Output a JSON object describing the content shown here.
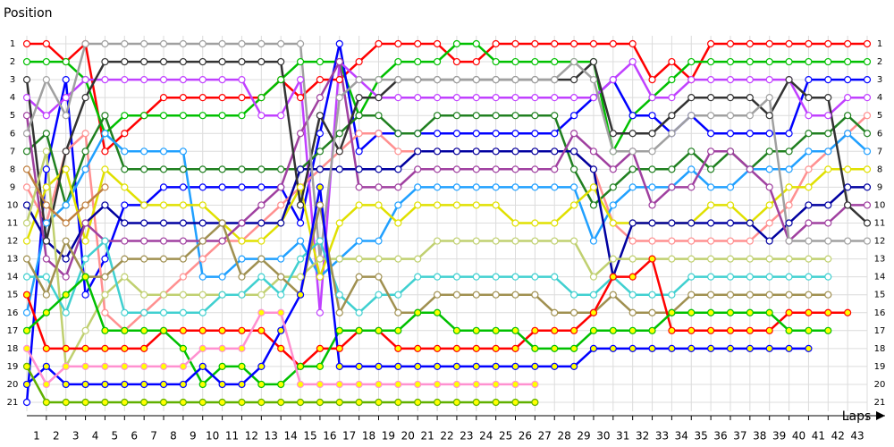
{
  "chart_data": {
    "type": "line",
    "x_label": "Laps",
    "y_label": "Position",
    "x": [
      0,
      1,
      2,
      3,
      4,
      5,
      6,
      7,
      8,
      9,
      10,
      11,
      12,
      13,
      14,
      15,
      16,
      17,
      18,
      19,
      20,
      21,
      22,
      23,
      24,
      25,
      26,
      27,
      28,
      29,
      30,
      31,
      32,
      33,
      34,
      35,
      36,
      37,
      38,
      39,
      40,
      41,
      42,
      43
    ],
    "xlim": [
      0,
      43
    ],
    "xticks": [
      1,
      2,
      3,
      4,
      5,
      6,
      7,
      8,
      9,
      10,
      11,
      12,
      13,
      14,
      15,
      16,
      17,
      18,
      19,
      20,
      21,
      22,
      23,
      24,
      25,
      26,
      27,
      28,
      29,
      30,
      31,
      32,
      33,
      34,
      35,
      36,
      37,
      38,
      39,
      40,
      41,
      42,
      43
    ],
    "ylim": [
      21,
      1
    ],
    "yticks": [
      1,
      2,
      3,
      4,
      5,
      6,
      7,
      8,
      9,
      10,
      11,
      12,
      13,
      14,
      15,
      16,
      17,
      18,
      19,
      20,
      21
    ],
    "grid": true,
    "series": [
      {
        "color": "#ff0000",
        "marker_fill": "#ffffff",
        "values": [
          1,
          1,
          2,
          1,
          7,
          6,
          5,
          4,
          4,
          4,
          4,
          4,
          4,
          3,
          4,
          3,
          3,
          2,
          1,
          1,
          1,
          1,
          2,
          2,
          1,
          1,
          1,
          1,
          1,
          1,
          1,
          1,
          3,
          2,
          3,
          1,
          1,
          1,
          1,
          1,
          1,
          1,
          1,
          1
        ]
      },
      {
        "color": "#00c000",
        "marker_fill": "#ffffff",
        "values": [
          2,
          2,
          2,
          3,
          6,
          5,
          5,
          5,
          5,
          5,
          5,
          5,
          4,
          3,
          2,
          2,
          2,
          5,
          3,
          2,
          2,
          2,
          1,
          1,
          2,
          2,
          2,
          2,
          2,
          2,
          7,
          5,
          4,
          3,
          2,
          2,
          2,
          2,
          2,
          2,
          2,
          2,
          2,
          2
        ]
      },
      {
        "color": "#0000ff",
        "marker_fill": "#ffffff",
        "values": [
          21,
          8,
          3,
          15,
          13,
          10,
          10,
          9,
          9,
          9,
          9,
          9,
          9,
          9,
          11,
          6,
          1,
          7,
          6,
          6,
          6,
          6,
          6,
          6,
          6,
          6,
          6,
          6,
          5,
          4,
          3,
          5,
          5,
          6,
          5,
          6,
          6,
          6,
          6,
          6,
          3,
          3,
          3,
          3
        ]
      },
      {
        "color": "#c040ff",
        "marker_fill": "#ffffff",
        "values": [
          4,
          5,
          4,
          3,
          3,
          3,
          3,
          3,
          3,
          3,
          3,
          3,
          5,
          5,
          3,
          16,
          2,
          3,
          4,
          4,
          4,
          4,
          4,
          4,
          4,
          4,
          4,
          4,
          4,
          4,
          3,
          2,
          4,
          4,
          3,
          3,
          3,
          3,
          3,
          3,
          5,
          5,
          4,
          4
        ]
      },
      {
        "color": "#ff9090",
        "marker_fill": "#ffffff",
        "values": [
          9,
          11,
          7,
          6,
          16,
          17,
          16,
          15,
          14,
          13,
          12,
          12,
          11,
          10,
          9,
          8,
          7,
          6,
          6,
          7,
          7,
          7,
          7,
          7,
          7,
          7,
          7,
          7,
          7,
          8,
          11,
          12,
          12,
          12,
          12,
          12,
          12,
          12,
          11,
          10,
          8,
          7,
          6,
          5
        ]
      },
      {
        "color": "#208020",
        "marker_fill": "#ffffff",
        "values": [
          7,
          6,
          10,
          7,
          5,
          8,
          8,
          8,
          8,
          8,
          8,
          8,
          8,
          8,
          8,
          7,
          6,
          5,
          5,
          6,
          6,
          5,
          5,
          5,
          5,
          5,
          5,
          5,
          8,
          10,
          9,
          8,
          8,
          8,
          7,
          8,
          7,
          8,
          7,
          7,
          6,
          6,
          5,
          6
        ]
      },
      {
        "color": "#20a0ff",
        "marker_fill": "#ffffff",
        "values": [
          16,
          11,
          10,
          8,
          6,
          7,
          7,
          7,
          7,
          14,
          14,
          13,
          13,
          13,
          12,
          14,
          13,
          12,
          12,
          10,
          9,
          9,
          9,
          9,
          9,
          9,
          9,
          9,
          9,
          12,
          10,
          9,
          9,
          9,
          8,
          9,
          9,
          8,
          8,
          8,
          7,
          7,
          6,
          7
        ]
      },
      {
        "color": "#e0e000",
        "marker_fill": "#ffffff",
        "values": [
          12,
          9,
          8,
          12,
          8,
          9,
          10,
          10,
          10,
          10,
          11,
          12,
          12,
          11,
          9,
          14,
          11,
          10,
          10,
          11,
          10,
          10,
          10,
          10,
          10,
          11,
          11,
          11,
          10,
          9,
          11,
          11,
          11,
          11,
          11,
          10,
          10,
          11,
          10,
          9,
          9,
          8,
          8,
          8
        ]
      },
      {
        "color": "#0000a0",
        "marker_fill": "#ffffff",
        "values": [
          10,
          12,
          13,
          11,
          10,
          11,
          11,
          11,
          11,
          11,
          11,
          11,
          11,
          11,
          8,
          8,
          8,
          8,
          8,
          8,
          7,
          7,
          7,
          7,
          7,
          7,
          7,
          7,
          7,
          8,
          14,
          11,
          11,
          11,
          11,
          11,
          11,
          11,
          12,
          11,
          10,
          10,
          9,
          9
        ]
      },
      {
        "color": "#a040a0",
        "marker_fill": "#ffffff",
        "values": [
          5,
          13,
          14,
          11,
          12,
          12,
          12,
          12,
          12,
          12,
          12,
          11,
          10,
          9,
          6,
          4,
          2,
          9,
          9,
          9,
          8,
          8,
          8,
          8,
          8,
          8,
          8,
          8,
          6,
          7,
          8,
          7,
          10,
          9,
          9,
          7,
          7,
          8,
          9,
          12,
          11,
          11,
          10,
          10
        ]
      },
      {
        "color": "#333333",
        "marker_fill": "#ffffff",
        "values": [
          3,
          12,
          7,
          4,
          2,
          2,
          2,
          2,
          2,
          2,
          2,
          2,
          2,
          2,
          10,
          5,
          7,
          4,
          4,
          3,
          3,
          3,
          3,
          3,
          3,
          3,
          3,
          3,
          3,
          2,
          6,
          6,
          6,
          5,
          4,
          4,
          4,
          4,
          5,
          3,
          4,
          4,
          10,
          11
        ]
      },
      {
        "color": "#a0a0a0",
        "marker_fill": "#ffffff",
        "values": [
          6,
          3,
          5,
          1,
          1,
          1,
          1,
          1,
          1,
          1,
          1,
          1,
          1,
          1,
          1,
          13,
          4,
          3,
          3,
          3,
          3,
          3,
          3,
          3,
          3,
          3,
          3,
          3,
          2,
          3,
          7,
          7,
          7,
          6,
          5,
          5,
          5,
          5,
          4,
          12,
          12,
          12,
          12,
          12
        ]
      },
      {
        "color": "#c0d070",
        "marker_fill": "#ffffff",
        "values": [
          11,
          7,
          19,
          17,
          15,
          14,
          15,
          15,
          15,
          15,
          15,
          15,
          15,
          14,
          14,
          13,
          13,
          13,
          13,
          13,
          13,
          12,
          12,
          12,
          12,
          12,
          12,
          12,
          12,
          14,
          13,
          13,
          13,
          13,
          13,
          13,
          13,
          13,
          13,
          13,
          13,
          13,
          null,
          null
        ]
      },
      {
        "color": "#40d0d0",
        "marker_fill": "#ffffff",
        "values": [
          14,
          14,
          16,
          13,
          12,
          16,
          16,
          16,
          16,
          16,
          15,
          15,
          14,
          15,
          13,
          12,
          15,
          16,
          15,
          15,
          14,
          14,
          14,
          14,
          14,
          14,
          14,
          14,
          15,
          15,
          14,
          15,
          15,
          15,
          14,
          14,
          14,
          14,
          14,
          14,
          14,
          14,
          null,
          null
        ]
      },
      {
        "color": "#a09050",
        "marker_fill": "#ffffff",
        "values": [
          13,
          15,
          12,
          14,
          14,
          13,
          13,
          13,
          13,
          12,
          11,
          14,
          13,
          14,
          15,
          10,
          16,
          14,
          14,
          16,
          16,
          15,
          15,
          15,
          15,
          15,
          15,
          16,
          16,
          16,
          15,
          16,
          16,
          16,
          15,
          15,
          15,
          15,
          15,
          15,
          15,
          15,
          null,
          null
        ]
      },
      {
        "color": "#ff0000",
        "marker_fill": "#ffff00",
        "values": [
          15,
          18,
          18,
          18,
          18,
          18,
          18,
          17,
          17,
          17,
          17,
          17,
          17,
          18,
          19,
          18,
          18,
          17,
          17,
          18,
          18,
          18,
          18,
          18,
          18,
          18,
          17,
          17,
          17,
          16,
          14,
          14,
          13,
          17,
          17,
          17,
          17,
          17,
          17,
          16,
          16,
          16,
          16,
          null
        ]
      },
      {
        "color": "#00c000",
        "marker_fill": "#ffff00",
        "values": [
          17,
          16,
          15,
          14,
          17,
          17,
          17,
          17,
          18,
          20,
          19,
          19,
          20,
          20,
          19,
          19,
          17,
          17,
          17,
          17,
          16,
          16,
          17,
          17,
          17,
          17,
          18,
          18,
          18,
          17,
          17,
          17,
          17,
          16,
          16,
          16,
          16,
          16,
          16,
          17,
          17,
          17,
          null,
          null
        ]
      },
      {
        "color": "#0000ff",
        "marker_fill": "#ffff00",
        "values": [
          20,
          19,
          20,
          20,
          20,
          20,
          20,
          20,
          20,
          19,
          20,
          20,
          19,
          17,
          15,
          9,
          19,
          19,
          19,
          19,
          19,
          19,
          19,
          19,
          19,
          19,
          19,
          19,
          19,
          18,
          18,
          18,
          18,
          18,
          18,
          18,
          18,
          18,
          18,
          18,
          18,
          null,
          null,
          null
        ]
      },
      {
        "color": "#ff90d0",
        "marker_fill": "#ffff00",
        "values": [
          18,
          20,
          19,
          19,
          19,
          19,
          19,
          19,
          19,
          18,
          18,
          18,
          16,
          16,
          20,
          20,
          20,
          20,
          20,
          20,
          20,
          20,
          20,
          20,
          20,
          20,
          20,
          null,
          null,
          null,
          null,
          null,
          null,
          null,
          null,
          null,
          null,
          null,
          null,
          null,
          null,
          null,
          null,
          null
        ]
      },
      {
        "color": "#60b000",
        "marker_fill": "#ffff00",
        "values": [
          19,
          21,
          21,
          21,
          21,
          21,
          21,
          21,
          21,
          21,
          21,
          21,
          21,
          21,
          21,
          21,
          21,
          21,
          21,
          21,
          21,
          21,
          21,
          21,
          21,
          21,
          21,
          null,
          null,
          null,
          null,
          null,
          null,
          null,
          null,
          null,
          null,
          null,
          null,
          null,
          null,
          null,
          null,
          null
        ]
      },
      {
        "color": "#c08040",
        "marker_fill": "#ffffff",
        "values": [
          8,
          10,
          11,
          10,
          9,
          null,
          null,
          null,
          null,
          null,
          null,
          null,
          null,
          null,
          null,
          null,
          null,
          null,
          null,
          null,
          null,
          null,
          null,
          null,
          null,
          null,
          null,
          null,
          null,
          null,
          null,
          null,
          null,
          null,
          null,
          null,
          null,
          null,
          null,
          null,
          null,
          null,
          null,
          null
        ]
      }
    ]
  }
}
